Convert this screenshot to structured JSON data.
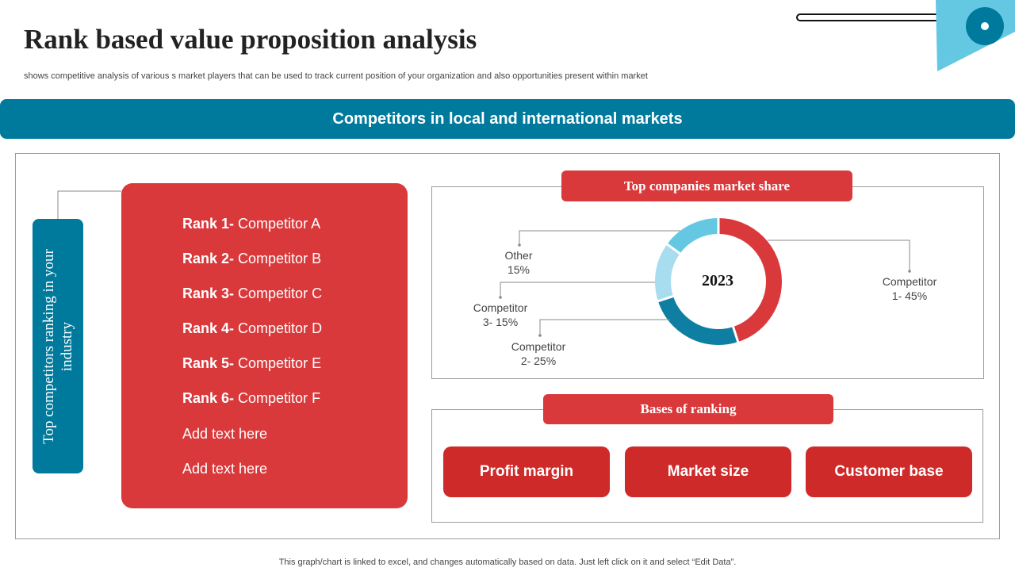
{
  "header": {
    "title": "Rank based value proposition analysis",
    "subtitle": "shows competitive analysis of various s market players that can be used to track current position of your organization and also opportunities present within market"
  },
  "banner": {
    "text": "Competitors in local and international markets"
  },
  "side_label": {
    "text": "Top competitors ranking in your industry"
  },
  "ranks": [
    {
      "bold": "Rank 1-",
      "text": " Competitor A"
    },
    {
      "bold": "Rank 2-",
      "text": " Competitor B"
    },
    {
      "bold": "Rank 3-",
      "text": " Competitor C"
    },
    {
      "bold": "Rank 4-",
      "text": " Competitor D"
    },
    {
      "bold": "Rank 5-",
      "text": " Competitor E"
    },
    {
      "bold": "Rank 6-",
      "text": " Competitor F"
    },
    {
      "bold": "",
      "text": "Add text here"
    },
    {
      "bold": "",
      "text": "Add text here"
    }
  ],
  "market_share": {
    "heading": "Top companies market share",
    "center_label": "2023"
  },
  "chart_data": {
    "type": "pie",
    "center_label": "2023",
    "slices": [
      {
        "label_line1": "Competitor",
        "label_line2": "1- 45%",
        "value": 45,
        "color": "#d9393b"
      },
      {
        "label_line1": "Competitor",
        "label_line2": "2- 25%",
        "value": 25,
        "color": "#0e7ea3"
      },
      {
        "label_line1": "Competitor",
        "label_line2": "3- 15%",
        "value": 15,
        "color": "#a7ddee"
      },
      {
        "label_line1": "Other",
        "label_line2": "15%",
        "value": 15,
        "color": "#64c8e3"
      }
    ]
  },
  "bases": {
    "heading": "Bases of ranking",
    "items": [
      "Profit margin",
      "Market size",
      "Customer base"
    ]
  },
  "footer": {
    "note": "This graph/chart is linked to excel,  and changes automatically based on data. Just left click on it and select “Edit Data”."
  },
  "colors": {
    "teal": "#007a9c",
    "red": "#d9393b",
    "dark_red": "#cf2a2a",
    "light_blue": "#64c8e3"
  }
}
